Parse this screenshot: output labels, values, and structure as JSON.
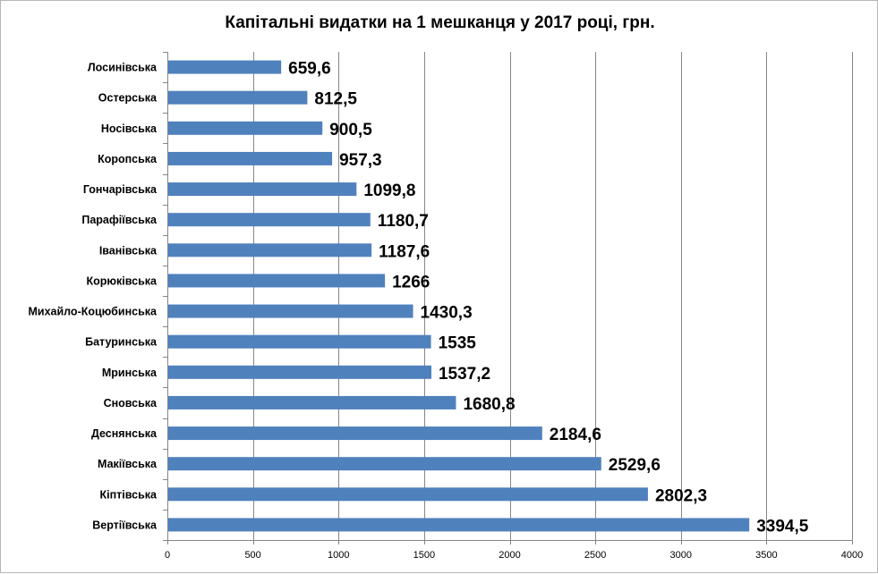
{
  "chart_data": {
    "type": "bar",
    "orientation": "horizontal",
    "title": "Капітальні видатки на 1 мешканця у 2017 році, грн.",
    "categories": [
      "Лосинівська",
      "Остерська",
      "Носівська",
      "Коропська",
      "Гончарівська",
      "Парафіївська",
      "Іванівська",
      "Корюківська",
      "Михайло-Коцюбинська",
      "Батуринська",
      "Мринська",
      "Сновська",
      "Деснянська",
      "Макіївська",
      "Кіптівська",
      "Вертіївська"
    ],
    "values": [
      659.6,
      812.5,
      900.5,
      957.3,
      1099.8,
      1180.7,
      1187.6,
      1266,
      1430.3,
      1535,
      1537.2,
      1680.8,
      2184.6,
      2529.6,
      2802.3,
      3394.5
    ],
    "value_labels": [
      "659,6",
      "812,5",
      "900,5",
      "957,3",
      "1099,8",
      "1180,7",
      "1187,6",
      "1266",
      "1430,3",
      "1535",
      "1537,2",
      "1680,8",
      "2184,6",
      "2529,6",
      "2802,3",
      "3394,5"
    ],
    "xlim": [
      0,
      4000
    ],
    "x_ticks": [
      0,
      500,
      1000,
      1500,
      2000,
      2500,
      3000,
      3500,
      4000
    ],
    "grid": true,
    "legend": "none",
    "colors": {
      "bar": "#4f81bd",
      "grid": "#868686"
    }
  }
}
